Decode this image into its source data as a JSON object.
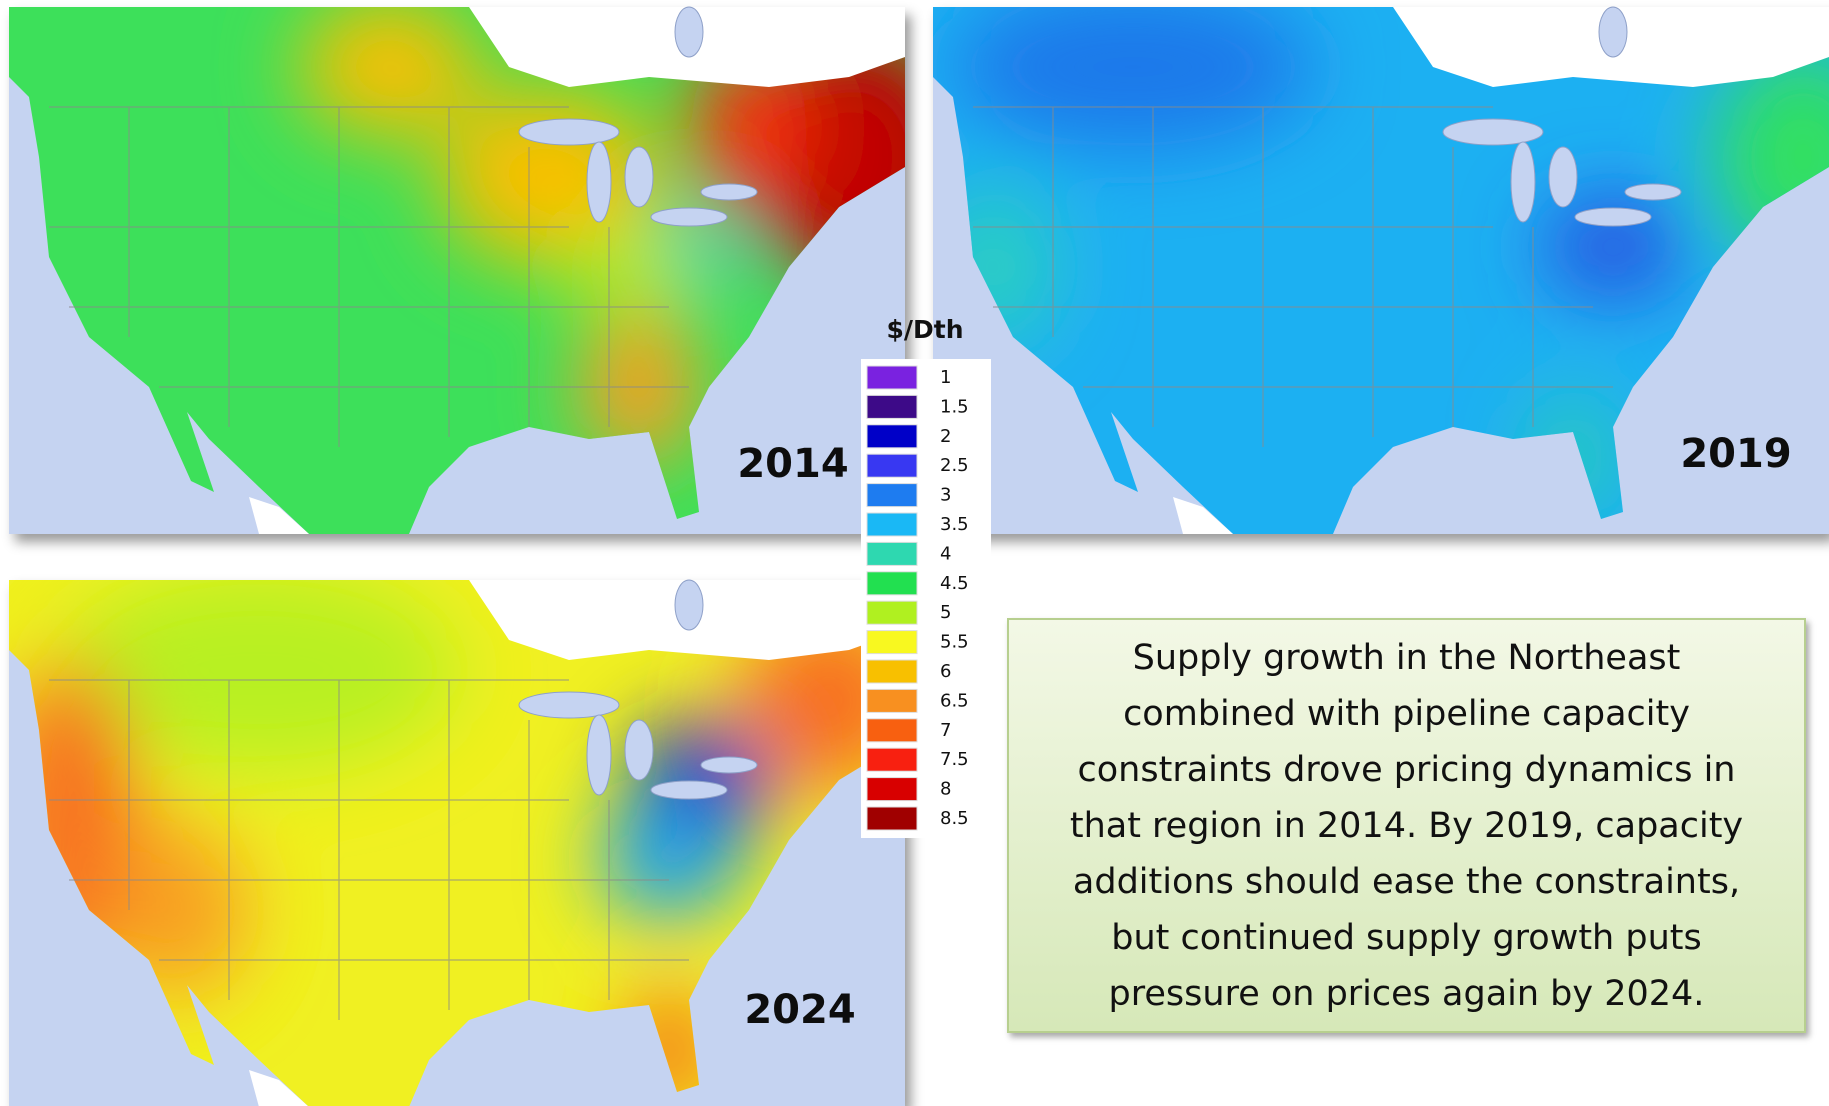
{
  "maps": [
    {
      "year": "2014"
    },
    {
      "year": "2019"
    },
    {
      "year": "2024"
    }
  ],
  "legend": {
    "title": "$/Dth",
    "items": [
      {
        "label": "1",
        "color": "#7a22e0"
      },
      {
        "label": "1.5",
        "color": "#3d0a88"
      },
      {
        "label": "2",
        "color": "#0000c8"
      },
      {
        "label": "2.5",
        "color": "#3838f2"
      },
      {
        "label": "3",
        "color": "#1e7cf0"
      },
      {
        "label": "3.5",
        "color": "#1ab8f5"
      },
      {
        "label": "4",
        "color": "#2ed8b0"
      },
      {
        "label": "4.5",
        "color": "#22e050"
      },
      {
        "label": "5",
        "color": "#b0f020"
      },
      {
        "label": "5.5",
        "color": "#f8f820"
      },
      {
        "label": "6",
        "color": "#f8c000"
      },
      {
        "label": "6.5",
        "color": "#f89020"
      },
      {
        "label": "7",
        "color": "#f86010"
      },
      {
        "label": "7.5",
        "color": "#f82010"
      },
      {
        "label": "8",
        "color": "#d80000"
      },
      {
        "label": "8.5",
        "color": "#a00000"
      }
    ]
  },
  "note": {
    "lines": [
      "Supply growth in the Northeast",
      "combined with pipeline capacity",
      "constraints drove pricing dynamics in",
      "that region in 2014.  By 2019, capacity",
      "additions should ease the constraints,",
      "but continued supply growth puts",
      "pressure on prices again by 2024."
    ]
  }
}
